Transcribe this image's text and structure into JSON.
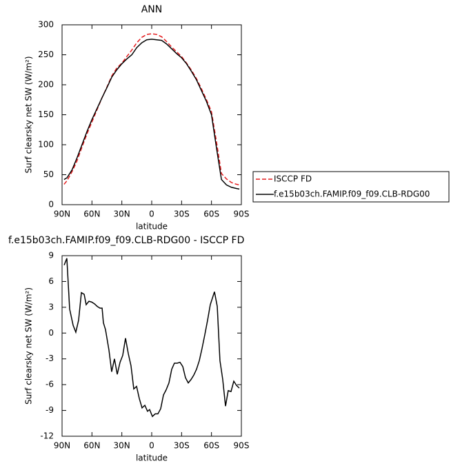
{
  "chart_data": [
    {
      "type": "line",
      "title": "ANN",
      "xlabel": "latitude",
      "ylabel": "Surf clearsky net SW (W/m²)",
      "x": [
        88,
        85,
        80,
        75,
        70,
        65,
        60,
        55,
        50,
        45,
        40,
        35,
        30,
        25,
        20,
        15,
        10,
        5,
        0,
        -5,
        -10,
        -15,
        -20,
        -25,
        -30,
        -35,
        -40,
        -45,
        -50,
        -55,
        -60,
        -65,
        -70,
        -75,
        -80,
        -85,
        -88
      ],
      "series": [
        {
          "name": "ISCCP FD",
          "color": "#e41a1c",
          "linestyle": "dashed",
          "values": [
            34,
            40,
            55,
            73,
            96,
            118,
            138,
            158,
            178,
            196,
            215,
            228,
            236,
            247,
            258,
            270,
            279,
            284,
            285,
            284,
            280,
            272,
            263,
            255,
            247,
            236,
            224,
            210,
            193,
            175,
            155,
            105,
            52,
            43,
            37,
            34,
            33
          ]
        },
        {
          "name": "f.e15b03ch.FAMIP.f09_f09.CLB-RDG00",
          "color": "#000000",
          "linestyle": "solid",
          "values": [
            42,
            45,
            58,
            78,
            100,
            122,
            142,
            160,
            178,
            195,
            213,
            225,
            235,
            243,
            250,
            262,
            270,
            275,
            276,
            275,
            274,
            268,
            260,
            252,
            245,
            235,
            222,
            208,
            190,
            172,
            150,
            95,
            42,
            33,
            29,
            27,
            26
          ]
        }
      ],
      "xlim": [
        90,
        -90
      ],
      "xticks": [
        {
          "value": 90,
          "label": "90N"
        },
        {
          "value": 60,
          "label": "60N"
        },
        {
          "value": 30,
          "label": "30N"
        },
        0,
        {
          "value": -30,
          "label": "30S"
        },
        {
          "value": -60,
          "label": "60S"
        },
        {
          "value": -90,
          "label": "90S"
        }
      ],
      "ylim": [
        0,
        300
      ],
      "yticks": [
        0,
        50,
        100,
        150,
        200,
        250,
        300
      ],
      "grid": false,
      "legend": "outside right"
    },
    {
      "type": "line",
      "title": "f.e15b03ch.FAMIP.f09_f09.CLB-RDG00 - ISCCP FD",
      "xlabel": "latitude",
      "ylabel": "Surf clearsky net SW (W/m²)",
      "x": [
        87.9,
        85.2,
        82.4,
        78.9,
        76.2,
        73.4,
        70.6,
        67.8,
        65.8,
        63.0,
        60.2,
        57.5,
        54.7,
        51.9,
        49.8,
        48.5,
        46.4,
        42.9,
        40.2,
        37.4,
        34.6,
        31.8,
        29.1,
        26.3,
        23.5,
        20.8,
        18.0,
        15.2,
        12.5,
        9.7,
        6.9,
        4.2,
        2.1,
        -0.7,
        -3.5,
        -6.2,
        -9.0,
        -11.8,
        -14.5,
        -17.3,
        -20.1,
        -22.8,
        -25.6,
        -28.4,
        -31.2,
        -33.9,
        -36.7,
        -39.5,
        -42.2,
        -45.0,
        -47.8,
        -50.5,
        -53.3,
        -56.1,
        -58.8,
        -63.0,
        -65.8,
        -68.5,
        -71.3,
        -74.1,
        -76.8,
        -79.6,
        -82.4,
        -85.2,
        -87.9
      ],
      "values": [
        7.9,
        8.7,
        2.8,
        0.9,
        0.1,
        1.5,
        4.7,
        4.5,
        3.3,
        3.7,
        3.6,
        3.4,
        3.1,
        2.9,
        2.9,
        1.2,
        0.4,
        -2.0,
        -4.5,
        -3.0,
        -4.8,
        -3.4,
        -2.6,
        -0.6,
        -2.4,
        -3.8,
        -6.5,
        -6.2,
        -7.6,
        -8.7,
        -8.4,
        -9.1,
        -8.9,
        -9.7,
        -9.4,
        -9.4,
        -8.8,
        -7.2,
        -6.6,
        -5.8,
        -4.2,
        -3.5,
        -3.5,
        -3.4,
        -3.9,
        -5.2,
        -5.8,
        -5.4,
        -4.9,
        -4.2,
        -3.2,
        -1.8,
        -0.2,
        1.5,
        3.3,
        4.8,
        3.1,
        -3.2,
        -5.4,
        -8.5,
        -6.7,
        -6.8,
        -5.6,
        -6.1,
        -6.4
      ],
      "color": "#000000",
      "xlim": [
        90,
        -90
      ],
      "xticks": [
        {
          "value": 90,
          "label": "90N"
        },
        {
          "value": 60,
          "label": "60N"
        },
        {
          "value": 30,
          "label": "30N"
        },
        0,
        {
          "value": -30,
          "label": "30S"
        },
        {
          "value": -60,
          "label": "60S"
        },
        {
          "value": -90,
          "label": "90S"
        }
      ],
      "ylim": [
        -12,
        9
      ],
      "yticks": [
        -12,
        -9,
        -6,
        -3,
        0,
        3,
        6,
        9
      ],
      "grid": false
    }
  ]
}
